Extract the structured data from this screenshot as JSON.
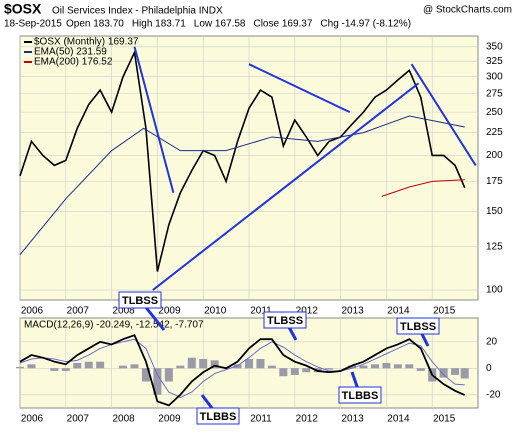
{
  "header": {
    "symbol": "$OSX",
    "title": "Oil Services Index - Philadelphia INDX",
    "watermark": "@ StockCharts.com",
    "date": "18-Sep-2015",
    "quote": [
      "Open 183.70",
      "High 183.71",
      "Low 167.58",
      "Close 169.37",
      "Chg -14.97 (-8.12%)"
    ]
  },
  "chart_data": [
    {
      "type": "line",
      "log_scale": true,
      "grid": true,
      "background": "#fbfbdc",
      "xlim": [
        2006,
        2016
      ],
      "xticks": [
        {
          "value": 2006,
          "label": "2006"
        },
        {
          "value": 2007,
          "label": "2007"
        },
        {
          "value": 2008,
          "label": "2008"
        },
        {
          "value": 2009,
          "label": "2009"
        },
        {
          "value": 2010,
          "label": "2010"
        },
        {
          "value": 2011,
          "label": "2011"
        },
        {
          "value": 2012,
          "label": "2012"
        },
        {
          "value": 2013,
          "label": "2013"
        },
        {
          "value": 2014,
          "label": "2014"
        },
        {
          "value": 2015,
          "label": "2015"
        }
      ],
      "ylim": [
        95,
        370
      ],
      "yticks": [
        100,
        125,
        150,
        175,
        200,
        225,
        250,
        275,
        300,
        325,
        350
      ],
      "series": [
        {
          "name": "$OSX (Monthly) 169.37",
          "color": "#000000",
          "width": 1.6,
          "x": [
            2006,
            2006.25,
            2006.5,
            2006.75,
            2007,
            2007.25,
            2007.5,
            2007.75,
            2008,
            2008.25,
            2008.5,
            2008.75,
            2009,
            2009.25,
            2009.5,
            2009.75,
            2010,
            2010.25,
            2010.5,
            2010.75,
            2011,
            2011.25,
            2011.5,
            2011.75,
            2012,
            2012.25,
            2012.5,
            2012.75,
            2013,
            2013.25,
            2013.5,
            2013.75,
            2014,
            2014.25,
            2014.5,
            2014.75,
            2015,
            2015.25,
            2015.5,
            2015.71
          ],
          "values": [
            180,
            215,
            200,
            190,
            195,
            230,
            260,
            280,
            250,
            300,
            340,
            230,
            110,
            140,
            165,
            185,
            205,
            200,
            175,
            215,
            255,
            280,
            270,
            210,
            240,
            220,
            200,
            215,
            220,
            235,
            250,
            270,
            280,
            295,
            310,
            270,
            200,
            200,
            190,
            169.37
          ]
        },
        {
          "name": "EMA(50) 231.59",
          "color": "#1a2a8c",
          "width": 1,
          "x": [
            2006,
            2007,
            2008,
            2008.7,
            2009.5,
            2010.5,
            2011.5,
            2012.5,
            2013.5,
            2014.5,
            2015.71
          ],
          "values": [
            120,
            160,
            205,
            230,
            205,
            205,
            220,
            215,
            225,
            245,
            231.59
          ]
        },
        {
          "name": "EMA(200) 176.52",
          "color": "#c00000",
          "width": 1,
          "x": [
            2013.9,
            2014.5,
            2015,
            2015.71
          ],
          "values": [
            162,
            170,
            175,
            176.52
          ]
        }
      ],
      "trendlines": {
        "color": "#2233dd",
        "x": [
          [
            2008.5,
            2009.35
          ],
          [
            2008.9,
            2014.7
          ],
          [
            2011,
            2013.2
          ],
          [
            2014.55,
            2015.95
          ]
        ],
        "y": [
          [
            350,
            165
          ],
          [
            100,
            290
          ],
          [
            320,
            250
          ],
          [
            320,
            190
          ]
        ]
      },
      "annotations": [
        "TLBSS"
      ]
    },
    {
      "type": "macd",
      "grid": true,
      "background": "#fbfbdc",
      "title": "MACD(12,26,9) -20.249, -12.542, -7.707",
      "xlim": [
        2006,
        2016
      ],
      "xticks": [
        {
          "value": 2006,
          "label": "2006"
        },
        {
          "value": 2007,
          "label": "2007"
        },
        {
          "value": 2008,
          "label": "2008"
        },
        {
          "value": 2009,
          "label": "2009"
        },
        {
          "value": 2010,
          "label": "2010"
        },
        {
          "value": 2011,
          "label": "2011"
        },
        {
          "value": 2012,
          "label": "2012"
        },
        {
          "value": 2013,
          "label": "2013"
        },
        {
          "value": 2014,
          "label": "2014"
        },
        {
          "value": 2015,
          "label": "2015"
        }
      ],
      "ylim": [
        -30,
        38
      ],
      "yticks": [
        20,
        0,
        -20
      ],
      "x": [
        2006,
        2006.25,
        2006.5,
        2006.75,
        2007,
        2007.25,
        2007.5,
        2007.75,
        2008,
        2008.25,
        2008.5,
        2008.75,
        2009,
        2009.25,
        2009.5,
        2009.75,
        2010,
        2010.25,
        2010.5,
        2010.75,
        2011,
        2011.25,
        2011.5,
        2011.75,
        2012,
        2012.25,
        2012.5,
        2012.75,
        2013,
        2013.25,
        2013.5,
        2013.75,
        2014,
        2014.25,
        2014.5,
        2014.75,
        2015,
        2015.25,
        2015.5,
        2015.71
      ],
      "series": [
        {
          "name": "MACD",
          "color": "#000000",
          "values": [
            5,
            10,
            8,
            5,
            3,
            10,
            15,
            20,
            18,
            22,
            25,
            5,
            -25,
            -28,
            -20,
            -10,
            -3,
            2,
            0,
            5,
            15,
            22,
            22,
            10,
            5,
            2,
            -2,
            -3,
            -2,
            2,
            5,
            10,
            15,
            18,
            22,
            15,
            -5,
            -12,
            -17,
            -20.249
          ]
        },
        {
          "name": "Signal",
          "color": "#6a6ad0",
          "values": [
            4,
            7,
            8,
            7,
            5,
            6,
            10,
            15,
            18,
            20,
            22,
            15,
            -5,
            -18,
            -22,
            -18,
            -10,
            -4,
            -1,
            2,
            8,
            15,
            20,
            16,
            10,
            5,
            1,
            -2,
            -2,
            0,
            3,
            7,
            11,
            15,
            19,
            17,
            5,
            -5,
            -12,
            -12.542
          ]
        },
        {
          "name": "Histogram",
          "color": "#9a9aa8",
          "values": [
            1,
            3,
            0,
            -2,
            -2,
            4,
            5,
            5,
            0,
            2,
            3,
            -10,
            -20,
            -10,
            2,
            8,
            7,
            6,
            1,
            3,
            7,
            7,
            2,
            -6,
            -5,
            -3,
            -3,
            -1,
            0,
            2,
            2,
            3,
            4,
            3,
            3,
            -2,
            -10,
            -7,
            -5,
            -7.707
          ]
        }
      ],
      "annotations": [
        "TLBSS",
        "TLBBS",
        "TLBBS",
        "TLBSS"
      ]
    }
  ]
}
